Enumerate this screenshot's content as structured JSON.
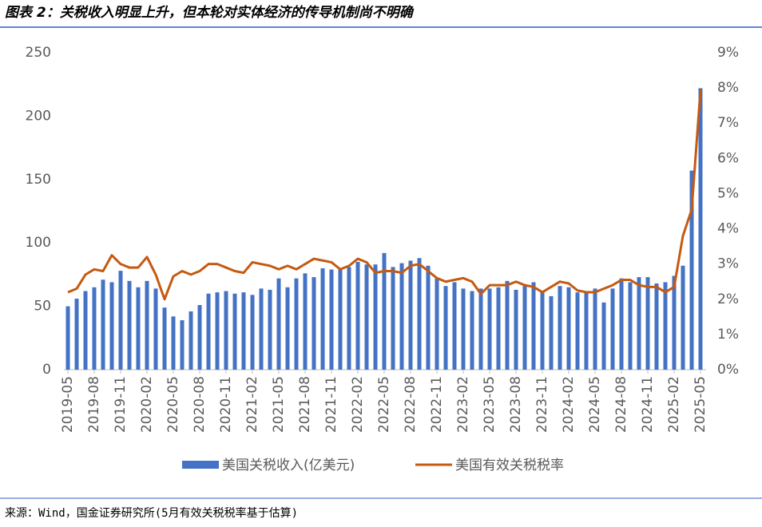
{
  "chart_data": {
    "type": "bar-line",
    "title": "图表 2：关税收入明显上升，但本轮对实体经济的传导机制尚不明确",
    "note": "来源：Wind，国金证券研究所(5月有效关税税率基于估算)",
    "categories": [
      "2019-05",
      null,
      null,
      "2019-08",
      null,
      null,
      "2019-11",
      null,
      null,
      "2020-02",
      null,
      null,
      "2020-05",
      null,
      null,
      "2020-08",
      null,
      null,
      "2020-11",
      null,
      null,
      "2021-02",
      null,
      null,
      "2021-05",
      null,
      null,
      "2021-08",
      null,
      null,
      "2021-11",
      null,
      null,
      "2022-02",
      null,
      null,
      "2022-05",
      null,
      null,
      "2022-08",
      null,
      null,
      "2022-11",
      null,
      null,
      "2023-02",
      null,
      null,
      "2023-05",
      null,
      null,
      "2023-08",
      null,
      null,
      "2023-11",
      null,
      null,
      "2024-02",
      null,
      null,
      "2024-05",
      null,
      null,
      "2024-08",
      null,
      null,
      "2024-11",
      null,
      null,
      "2025-02",
      null,
      null,
      "2025-05"
    ],
    "series": [
      {
        "name": "美国关税收入(亿美元)",
        "color": "#4472c4",
        "type": "bar",
        "values": [
          50,
          56,
          62,
          65,
          71,
          69,
          78,
          70,
          65,
          70,
          64,
          49,
          42,
          39,
          46,
          51,
          60,
          61,
          62,
          60,
          61,
          59,
          64,
          63,
          72,
          65,
          72,
          76,
          73,
          80,
          79,
          80,
          81,
          85,
          83,
          83,
          92,
          81,
          84,
          86,
          88,
          82,
          72,
          66,
          69,
          64,
          62,
          64,
          64,
          65,
          70,
          63,
          66,
          69,
          62,
          58,
          66,
          65,
          61,
          62,
          64,
          53,
          64,
          72,
          69,
          73,
          73,
          68,
          69,
          74,
          82,
          157,
          222
        ]
      },
      {
        "name": "美国有效关税税率",
        "color": "#c55a11",
        "type": "line",
        "axis": "y2",
        "values": [
          2.2,
          2.3,
          2.7,
          2.85,
          2.8,
          3.25,
          3.0,
          2.9,
          2.9,
          3.2,
          2.7,
          2.0,
          2.65,
          2.8,
          2.7,
          2.8,
          3.0,
          3.0,
          2.9,
          2.8,
          2.75,
          3.05,
          3.0,
          2.95,
          2.85,
          2.95,
          2.85,
          3.0,
          3.15,
          3.1,
          3.05,
          2.85,
          2.95,
          3.15,
          3.05,
          2.75,
          2.8,
          2.8,
          2.75,
          2.95,
          3.0,
          2.8,
          2.6,
          2.5,
          2.55,
          2.6,
          2.5,
          2.15,
          2.4,
          2.4,
          2.4,
          2.5,
          2.4,
          2.35,
          2.2,
          2.35,
          2.5,
          2.45,
          2.25,
          2.2,
          2.2,
          2.3,
          2.4,
          2.55,
          2.55,
          2.4,
          2.35,
          2.35,
          2.2,
          2.35,
          3.8,
          4.55,
          7.95
        ]
      }
    ],
    "ylim": [
      0,
      250
    ],
    "yticks": [
      0,
      50,
      100,
      150,
      200,
      250
    ],
    "y2lim": [
      0,
      9
    ],
    "y2ticks": [
      {
        "value": 0,
        "label": "0%"
      },
      {
        "value": 1,
        "label": "1%"
      },
      {
        "value": 2,
        "label": "2%"
      },
      {
        "value": 3,
        "label": "3%"
      },
      {
        "value": 4,
        "label": "4%"
      },
      {
        "value": 5,
        "label": "5%"
      },
      {
        "value": 6,
        "label": "6%"
      },
      {
        "value": 7,
        "label": "7%"
      },
      {
        "value": 8,
        "label": "8%"
      },
      {
        "value": 9,
        "label": "9%"
      }
    ],
    "legend": "bottom"
  }
}
